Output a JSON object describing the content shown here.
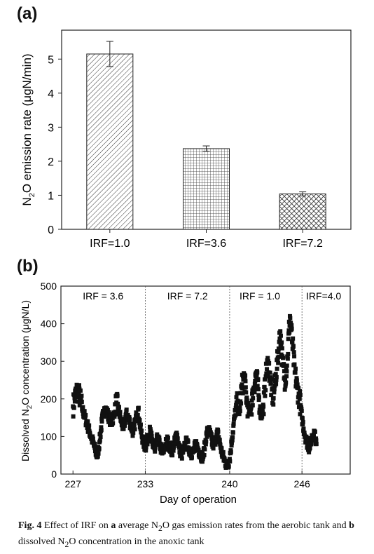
{
  "panel_a_label": "(a)",
  "panel_b_label": "(b)",
  "caption": {
    "fig": "Fig. 4",
    "text_1": " Effect of IRF on ",
    "a": "a",
    "text_2": " average N",
    "sub_1": "2",
    "text_3": "O gas emission rates from the aerobic tank and ",
    "b": "b",
    "text_4": " dissolved N",
    "sub_2": "2",
    "text_5": "O concentration in the anoxic tank"
  },
  "chart_data": [
    {
      "type": "bar",
      "ylabel": "N2O emission rate (μgN/min)",
      "ylabel_parts": {
        "pre": "N",
        "sub": "2",
        "post": "O emission rate (μgN/min)"
      },
      "categories": [
        "IRF=1.0",
        "IRF=3.6",
        "IRF=7.2"
      ],
      "values": [
        5.15,
        2.37,
        1.04
      ],
      "errors": [
        0.37,
        0.08,
        0.06
      ],
      "patterns": [
        "diagonal-hatch",
        "grid-hatch",
        "cross-hatch"
      ],
      "ylim": [
        0,
        5.85
      ],
      "yticks": [
        0,
        1,
        2,
        3,
        4,
        5
      ]
    },
    {
      "type": "scatter",
      "xlabel": "Day of operation",
      "ylabel": "Dissolved N2O concentration (μgN/L)",
      "ylabel_parts": {
        "pre": "Dissolved N",
        "sub": "2",
        "post": "O concentration (μgN/L)"
      },
      "xlim": [
        226,
        250
      ],
      "ylim": [
        0,
        500
      ],
      "xticks": [
        227,
        233,
        240,
        246
      ],
      "yticks": [
        0,
        100,
        200,
        300,
        400,
        500
      ],
      "phase_boundaries": [
        233,
        240,
        246
      ],
      "phases": [
        {
          "label": "IRF = 3.6",
          "x": 229.5
        },
        {
          "label": "IRF = 7.2",
          "x": 236.5
        },
        {
          "label": "IRF = 1.0",
          "x": 242.5
        },
        {
          "label": "IRF=4.0",
          "x": 247.8
        }
      ],
      "points": [
        [
          227.0,
          180
        ],
        [
          227.2,
          210
        ],
        [
          227.4,
          225
        ],
        [
          227.6,
          200
        ],
        [
          227.8,
          170
        ],
        [
          228.0,
          150
        ],
        [
          228.2,
          130
        ],
        [
          228.4,
          110
        ],
        [
          228.6,
          90
        ],
        [
          228.8,
          70
        ],
        [
          229.0,
          45
        ],
        [
          229.2,
          85
        ],
        [
          229.4,
          140
        ],
        [
          229.6,
          175
        ],
        [
          229.8,
          165
        ],
        [
          230.0,
          150
        ],
        [
          230.2,
          135
        ],
        [
          230.4,
          160
        ],
        [
          230.6,
          190
        ],
        [
          230.8,
          170
        ],
        [
          231.0,
          140
        ],
        [
          231.2,
          120
        ],
        [
          231.4,
          160
        ],
        [
          231.6,
          150
        ],
        [
          231.8,
          130
        ],
        [
          232.0,
          110
        ],
        [
          232.2,
          145
        ],
        [
          232.4,
          175
        ],
        [
          232.6,
          120
        ],
        [
          232.8,
          90
        ],
        [
          233.0,
          70
        ],
        [
          233.2,
          95
        ],
        [
          233.4,
          115
        ],
        [
          233.6,
          80
        ],
        [
          233.8,
          60
        ],
        [
          234.0,
          95
        ],
        [
          234.2,
          80
        ],
        [
          234.4,
          55
        ],
        [
          234.6,
          70
        ],
        [
          234.8,
          90
        ],
        [
          235.0,
          75
        ],
        [
          235.2,
          60
        ],
        [
          235.4,
          80
        ],
        [
          235.6,
          110
        ],
        [
          235.8,
          70
        ],
        [
          236.0,
          50
        ],
        [
          236.2,
          65
        ],
        [
          236.4,
          85
        ],
        [
          236.6,
          70
        ],
        [
          236.8,
          55
        ],
        [
          237.0,
          60
        ],
        [
          237.2,
          80
        ],
        [
          237.4,
          65
        ],
        [
          237.6,
          50
        ],
        [
          237.8,
          45
        ],
        [
          238.0,
          90
        ],
        [
          238.2,
          120
        ],
        [
          238.4,
          105
        ],
        [
          238.6,
          75
        ],
        [
          238.8,
          90
        ],
        [
          239.0,
          110
        ],
        [
          239.2,
          80
        ],
        [
          239.4,
          50
        ],
        [
          239.6,
          35
        ],
        [
          239.8,
          20
        ],
        [
          240.0,
          40
        ],
        [
          240.2,
          95
        ],
        [
          240.4,
          150
        ],
        [
          240.6,
          190
        ],
        [
          240.8,
          160
        ],
        [
          241.0,
          230
        ],
        [
          241.2,
          260
        ],
        [
          241.4,
          200
        ],
        [
          241.6,
          160
        ],
        [
          241.8,
          180
        ],
        [
          242.0,
          230
        ],
        [
          242.2,
          270
        ],
        [
          242.4,
          210
        ],
        [
          242.6,
          150
        ],
        [
          242.8,
          180
        ],
        [
          243.0,
          260
        ],
        [
          243.2,
          300
        ],
        [
          243.4,
          240
        ],
        [
          243.6,
          200
        ],
        [
          243.8,
          250
        ],
        [
          244.0,
          310
        ],
        [
          244.2,
          380
        ],
        [
          244.4,
          290
        ],
        [
          244.6,
          250
        ],
        [
          244.8,
          310
        ],
        [
          245.0,
          420
        ],
        [
          245.2,
          350
        ],
        [
          245.4,
          270
        ],
        [
          245.6,
          230
        ],
        [
          245.8,
          200
        ],
        [
          246.0,
          150
        ],
        [
          246.2,
          110
        ],
        [
          246.4,
          85
        ],
        [
          246.6,
          70
        ],
        [
          246.8,
          95
        ],
        [
          247.0,
          115
        ],
        [
          247.2,
          80
        ]
      ]
    }
  ]
}
